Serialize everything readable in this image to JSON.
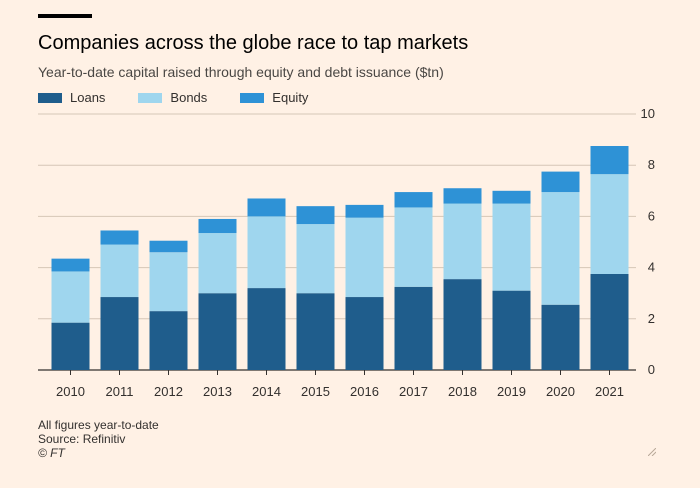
{
  "header": {
    "title": "Companies across the globe race to tap markets",
    "subtitle": "Year-to-date capital raised through equity and debt issuance ($tn)"
  },
  "footer": {
    "note": "All figures year-to-date",
    "source": "Source: Refinitiv",
    "copyright": "© FT"
  },
  "colors": {
    "loans": "#1f5d8c",
    "bonds": "#9fd6ee",
    "equity": "#2e92d6",
    "grid": "#d6c6b6",
    "axis": "#33302e"
  },
  "chart_data": {
    "type": "bar",
    "stacked": true,
    "title": "Companies across the globe race to tap markets",
    "subtitle": "Year-to-date capital raised through equity and debt issuance ($tn)",
    "categories": [
      "2010",
      "2011",
      "2012",
      "2013",
      "2014",
      "2015",
      "2016",
      "2017",
      "2018",
      "2019",
      "2020",
      "2021"
    ],
    "series": [
      {
        "name": "Loans",
        "values": [
          1.85,
          2.85,
          2.3,
          3.0,
          3.2,
          3.0,
          2.85,
          3.25,
          3.55,
          3.1,
          2.55,
          3.75
        ]
      },
      {
        "name": "Bonds",
        "values": [
          2.0,
          2.05,
          2.3,
          2.35,
          2.8,
          2.7,
          3.1,
          3.1,
          2.95,
          3.4,
          4.4,
          3.9
        ]
      },
      {
        "name": "Equity",
        "values": [
          0.5,
          0.55,
          0.45,
          0.55,
          0.7,
          0.7,
          0.5,
          0.6,
          0.6,
          0.5,
          0.8,
          1.1
        ]
      }
    ],
    "yticks": [
      0,
      2,
      4,
      6,
      8,
      10
    ],
    "ylim": [
      0,
      10
    ],
    "xlabel": "",
    "ylabel": "",
    "grid": true,
    "y_axis_side": "right",
    "legend_position": "top-left"
  }
}
